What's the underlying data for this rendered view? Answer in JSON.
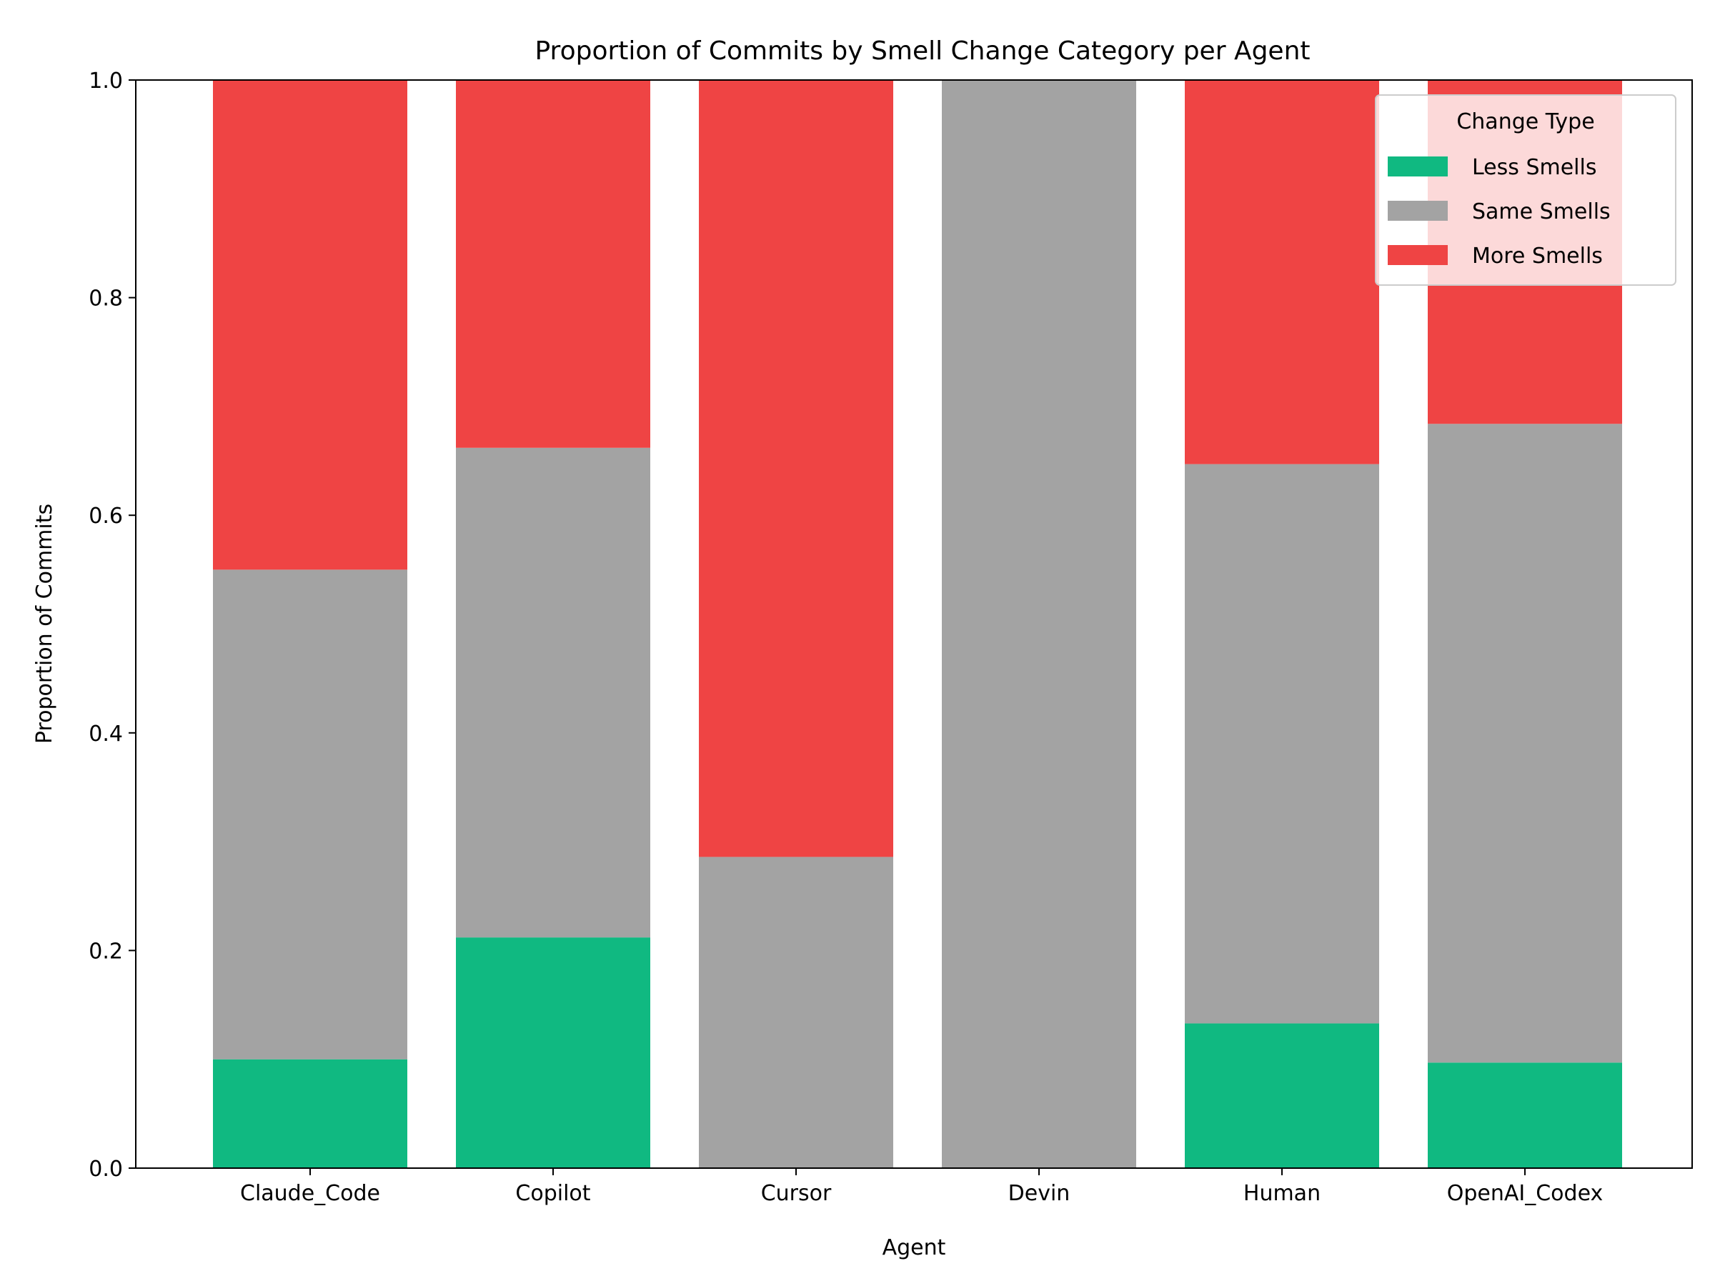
{
  "chart_data": {
    "type": "bar",
    "stacked": true,
    "title": "Proportion of Commits by Smell Change Category per Agent",
    "xlabel": "Agent",
    "ylabel": "Proportion of Commits",
    "ylim": [
      0,
      1
    ],
    "yticks": [
      "0.0",
      "0.2",
      "0.4",
      "0.6",
      "0.8",
      "1.0"
    ],
    "categories": [
      "Claude_Code",
      "Copilot",
      "Cursor",
      "Devin",
      "Human",
      "OpenAI_Codex"
    ],
    "series": [
      {
        "name": "Less Smells",
        "color": "#10b981",
        "values": [
          0.1,
          0.212,
          0.0,
          0.0,
          0.133,
          0.097
        ]
      },
      {
        "name": "Same Smells",
        "color": "#a3a3a3",
        "values": [
          0.45,
          0.45,
          0.286,
          1.0,
          0.514,
          0.587
        ]
      },
      {
        "name": "More Smells",
        "color": "#ef4444",
        "values": [
          0.45,
          0.338,
          0.714,
          0.0,
          0.353,
          0.316
        ]
      }
    ],
    "grid": false,
    "legend": {
      "title": "Change Type",
      "placement": "top-right"
    }
  }
}
